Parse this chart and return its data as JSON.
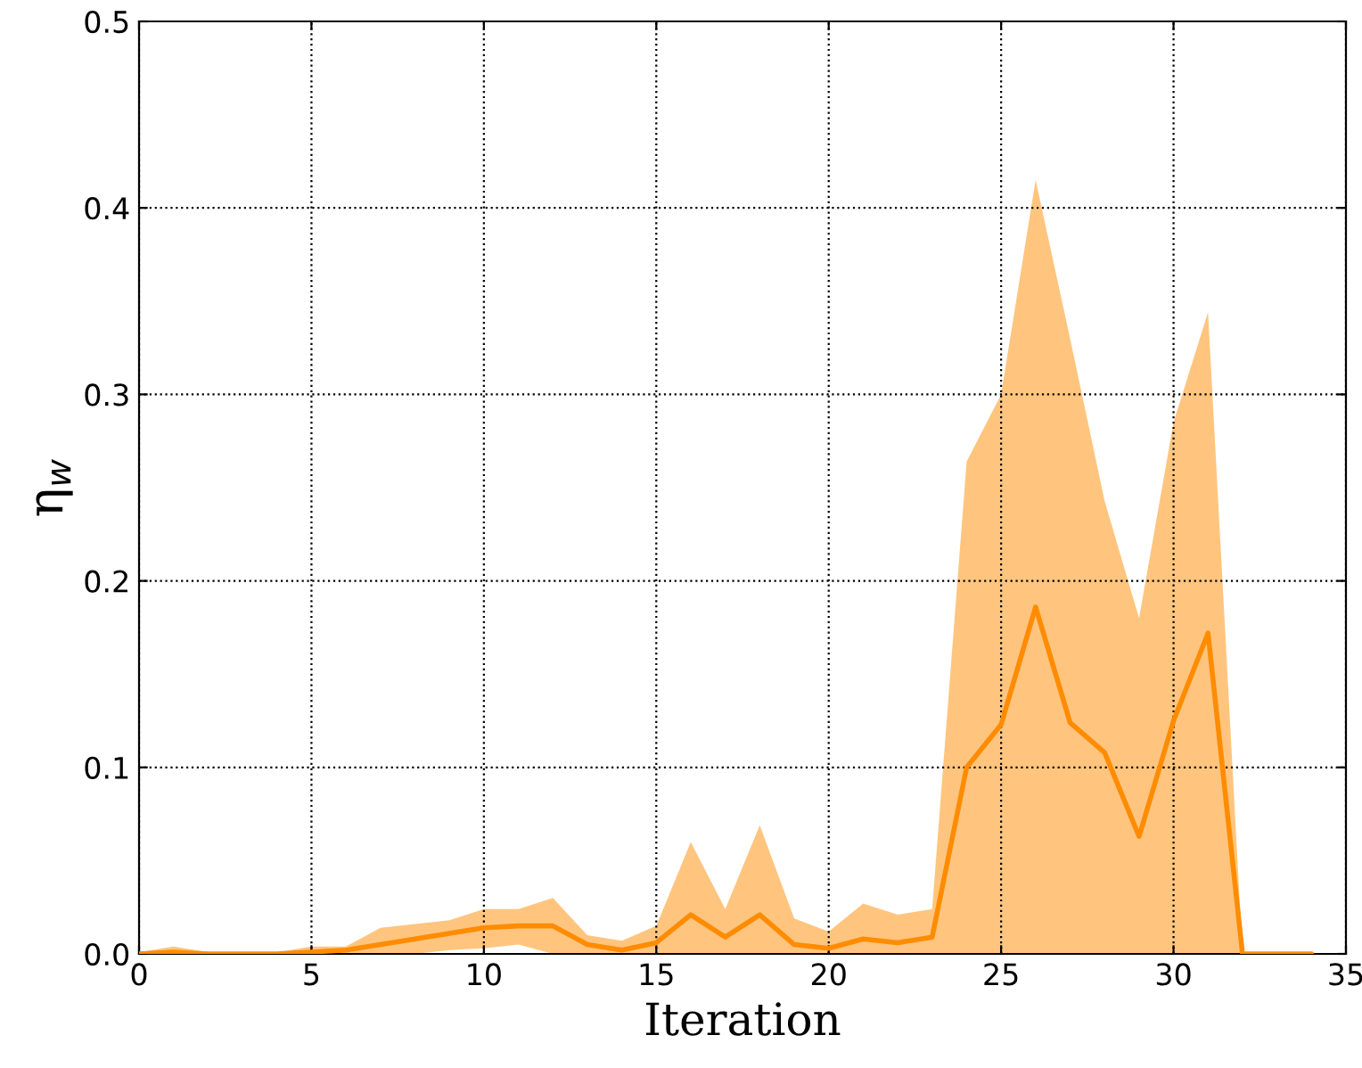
{
  "chart_data": {
    "type": "line",
    "xlabel": "Iteration",
    "ylabel": "η$_{w}$",
    "x": [
      0,
      1,
      2,
      3,
      4,
      5,
      6,
      7,
      8,
      9,
      10,
      11,
      12,
      13,
      14,
      15,
      16,
      17,
      18,
      19,
      20,
      21,
      22,
      23,
      24,
      25,
      26,
      27,
      28,
      29,
      30,
      31,
      32,
      33,
      34
    ],
    "series": [
      {
        "color": "#ff8c00",
        "values": [
          0,
          0.001,
          0,
          0,
          0,
          0.001,
          0.002,
          0.005,
          0.008,
          0.011,
          0.014,
          0.015,
          0.015,
          0.005,
          0.002,
          0.006,
          0.021,
          0.009,
          0.021,
          0.005,
          0.003,
          0.008,
          0.006,
          0.009,
          0.1,
          0.123,
          0.186,
          0.124,
          0.108,
          0.063,
          0.125,
          0.172,
          0,
          0,
          0
        ],
        "lower": [
          0,
          0,
          0,
          0,
          0,
          0,
          0,
          0,
          0,
          0.002,
          0.003,
          0.005,
          0,
          0,
          0,
          0,
          0,
          0,
          0,
          0,
          0,
          0,
          0,
          0,
          0,
          0,
          0,
          0,
          0,
          0,
          0,
          0,
          0,
          0,
          0
        ],
        "upper": [
          0.001,
          0.004,
          0.001,
          0,
          0.001,
          0.004,
          0.004,
          0.014,
          0.016,
          0.018,
          0.024,
          0.024,
          0.03,
          0.01,
          0.007,
          0.015,
          0.06,
          0.024,
          0.069,
          0.019,
          0.012,
          0.027,
          0.021,
          0.024,
          0.264,
          0.3,
          0.415,
          0.33,
          0.243,
          0.18,
          0.285,
          0.344,
          0,
          0,
          0
        ]
      }
    ],
    "xlim": [
      0,
      35
    ],
    "xticks": [
      0,
      5,
      10,
      15,
      20,
      25,
      30,
      35
    ],
    "ylim": [
      0,
      0.5
    ],
    "yticks": [
      {
        "value": 0,
        "label": "0.0"
      },
      0.1,
      0.2,
      0.3,
      0.4,
      0.5
    ],
    "grid": true,
    "line_style": "solid",
    "marker": "none"
  }
}
